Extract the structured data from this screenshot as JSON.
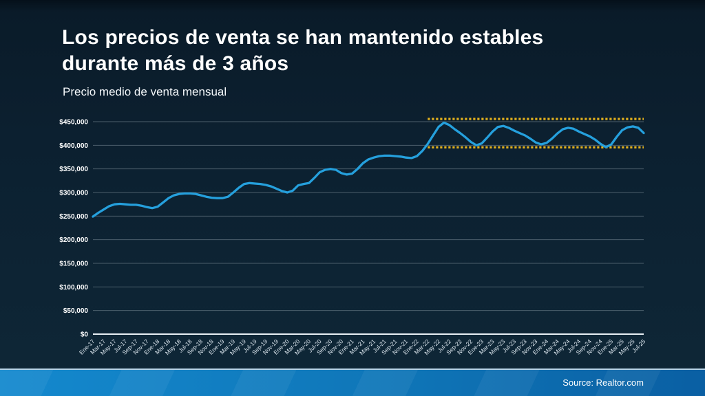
{
  "slide": {
    "title_line1": "Los precios de venta se han mantenido estables",
    "title_line2": "durante más de 3 años",
    "subtitle": "Precio medio de venta mensual",
    "source": "Source: Realtor.com"
  },
  "colors": {
    "background": "#0c2130",
    "title_text": "#ffffff",
    "line": "#25a0dd",
    "band_dots": "#e6b31e",
    "grid": "#62737f",
    "axis": "#e9f0f5",
    "y_tick_text": "#ffffff",
    "x_tick_text": "#dce6ee",
    "footer_left": "#1489ce",
    "footer_right": "#0a5fa3",
    "footer_top_edge": "#b7d3e8"
  },
  "chart_data": {
    "type": "line",
    "title": "Precio medio de venta mensual",
    "xlabel": "",
    "ylabel": "",
    "ylim": [
      0,
      450000
    ],
    "y_tick_step": 50000,
    "y_tick_labels": [
      "$0",
      "$50,000",
      "$100,000",
      "$150,000",
      "$200,000",
      "$250,000",
      "$300,000",
      "$350,000",
      "$400,000",
      "$450,000"
    ],
    "grid": "horizontal",
    "legend": "none",
    "x_tick_every": 2,
    "x_tick_labels": [
      "Ene-17",
      "Mar-17",
      "May-17",
      "Jul-17",
      "Sep-17",
      "Nov-17",
      "Ene-18",
      "Mar-18",
      "May-18",
      "Jul-18",
      "Sep-18",
      "Nov-18",
      "Ene-19",
      "Mar-19",
      "May-19",
      "Jul-19",
      "Sep-19",
      "Nov-19",
      "Ene-20",
      "Mar-20",
      "May-20",
      "Jul-20",
      "Sep-20",
      "Nov-20",
      "Ene-21",
      "Mar-21",
      "May-21",
      "Jul-21",
      "Sep-21",
      "Nov-21",
      "Ene-22",
      "Mar-22",
      "May-22",
      "Jul-22",
      "Sep-22",
      "Nov-22",
      "Ene-23",
      "Mar-23",
      "May-23",
      "Jul-23",
      "Sep-23",
      "Nov-23",
      "Ene-24",
      "Mar-24",
      "May-24",
      "Jul-24",
      "Sep-24",
      "Nov-24",
      "Ene-25",
      "Mar-25",
      "May-25",
      "Jul-25"
    ],
    "x": [
      "Ene-17",
      "Feb-17",
      "Mar-17",
      "Abr-17",
      "May-17",
      "Jun-17",
      "Jul-17",
      "Ago-17",
      "Sep-17",
      "Oct-17",
      "Nov-17",
      "Dic-17",
      "Ene-18",
      "Feb-18",
      "Mar-18",
      "Abr-18",
      "May-18",
      "Jun-18",
      "Jul-18",
      "Ago-18",
      "Sep-18",
      "Oct-18",
      "Nov-18",
      "Dic-18",
      "Ene-19",
      "Feb-19",
      "Mar-19",
      "Abr-19",
      "May-19",
      "Jun-19",
      "Jul-19",
      "Ago-19",
      "Sep-19",
      "Oct-19",
      "Nov-19",
      "Dic-19",
      "Ene-20",
      "Feb-20",
      "Mar-20",
      "Abr-20",
      "May-20",
      "Jun-20",
      "Jul-20",
      "Ago-20",
      "Sep-20",
      "Oct-20",
      "Nov-20",
      "Dic-20",
      "Ene-21",
      "Feb-21",
      "Mar-21",
      "Abr-21",
      "May-21",
      "Jun-21",
      "Jul-21",
      "Ago-21",
      "Sep-21",
      "Oct-21",
      "Nov-21",
      "Dic-21",
      "Ene-22",
      "Feb-22",
      "Mar-22",
      "Abr-22",
      "May-22",
      "Jun-22",
      "Jul-22",
      "Ago-22",
      "Sep-22",
      "Oct-22",
      "Nov-22",
      "Dic-22",
      "Ene-23",
      "Feb-23",
      "Mar-23",
      "Abr-23",
      "May-23",
      "Jun-23",
      "Jul-23",
      "Ago-23",
      "Sep-23",
      "Oct-23",
      "Nov-23",
      "Dic-23",
      "Ene-24",
      "Feb-24",
      "Mar-24",
      "Abr-24",
      "May-24",
      "Jun-24",
      "Jul-24",
      "Ago-24",
      "Sep-24",
      "Oct-24",
      "Nov-24",
      "Dic-24",
      "Ene-25",
      "Feb-25",
      "Mar-25",
      "Abr-25",
      "May-25",
      "Jun-25",
      "Jul-25"
    ],
    "series": [
      {
        "name": "Precio medio de venta mensual",
        "color": "#25a0dd",
        "values": [
          249000,
          257000,
          264000,
          271000,
          275000,
          276000,
          275000,
          274000,
          274000,
          272000,
          269000,
          267000,
          270000,
          279000,
          288000,
          294000,
          297000,
          298000,
          298000,
          297000,
          294000,
          291000,
          289000,
          288000,
          288000,
          291000,
          300000,
          310000,
          318000,
          320000,
          319000,
          318000,
          316000,
          313000,
          308000,
          303000,
          300000,
          304000,
          315000,
          318000,
          320000,
          331000,
          343000,
          348000,
          350000,
          348000,
          341000,
          338000,
          340000,
          350000,
          362000,
          370000,
          374000,
          377000,
          378000,
          378000,
          377000,
          376000,
          374000,
          373000,
          377000,
          388000,
          403000,
          421000,
          439000,
          448000,
          443000,
          434000,
          426000,
          417000,
          407000,
          400000,
          404000,
          416000,
          429000,
          439000,
          441000,
          437000,
          431000,
          426000,
          421000,
          414000,
          406000,
          402000,
          405000,
          414000,
          425000,
          434000,
          437000,
          435000,
          429000,
          424000,
          419000,
          412000,
          403000,
          396000,
          402000,
          418000,
          432000,
          438000,
          440000,
          437000,
          426000
        ]
      }
    ],
    "annotations": {
      "stability_band": {
        "top": 450000,
        "bottom": 400000,
        "start_x": "Mar-22",
        "end_x": "Jul-25",
        "style": "dotted",
        "color": "#e6b31e"
      }
    }
  }
}
